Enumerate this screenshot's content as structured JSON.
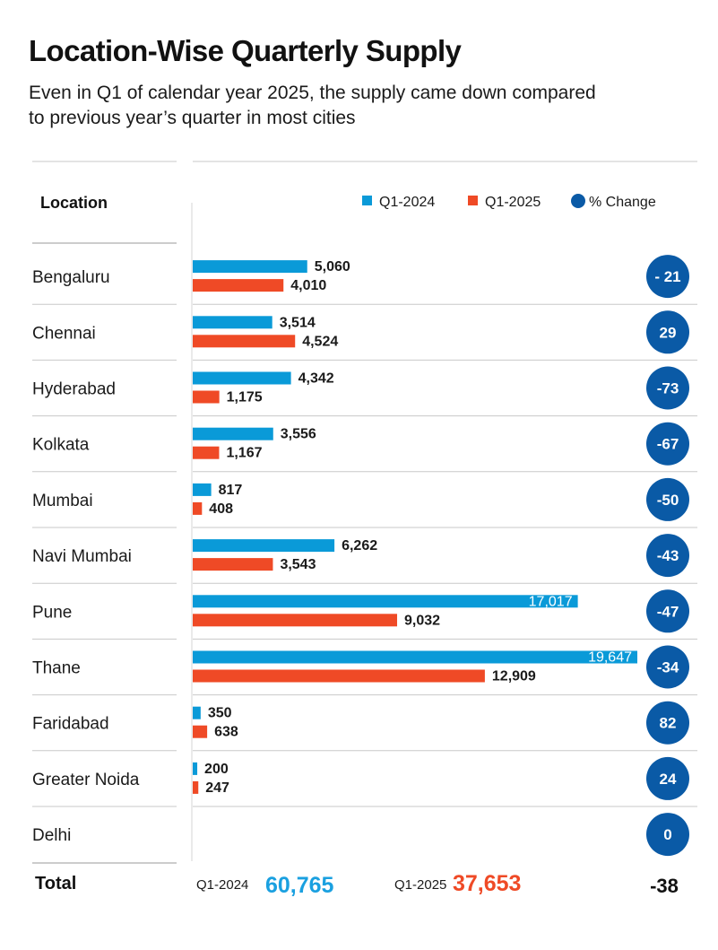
{
  "title": "Location-Wise Quarterly Supply",
  "subtitle": "Even in Q1 of calendar year 2025, the supply came down compared to previous year’s quarter in most cities",
  "colors": {
    "q1_2024": "#0a9ad8",
    "q1_2025": "#ef4a26",
    "change_circle": "#0a5aa6",
    "text": "#1a1a1a",
    "rule": "#c8c8c8",
    "total_2024": "#1aa0e0",
    "total_2025": "#ef4a26"
  },
  "chart_data": {
    "type": "bar",
    "orientation": "horizontal",
    "title": "Location-Wise Quarterly Supply",
    "subtitle": "Even in Q1 of calendar year 2025, the supply came down compared to previous year’s quarter in most cities",
    "column_header": "Location",
    "categories": [
      "Bengaluru",
      "Chennai",
      "Hyderabad",
      "Kolkata",
      "Mumbai",
      "Navi Mumbai",
      "Pune",
      "Thane",
      "Faridabad",
      "Greater Noida",
      "Delhi"
    ],
    "series": [
      {
        "name": "Q1-2024",
        "values": [
          5060,
          3514,
          4342,
          3556,
          817,
          6262,
          17017,
          19647,
          350,
          200,
          null
        ],
        "labels": [
          "5,060",
          "3,514",
          "4,342",
          "3,556",
          "817",
          "6,262",
          "17,017",
          "19,647",
          "350",
          "200",
          ""
        ]
      },
      {
        "name": "Q1-2025",
        "values": [
          4010,
          4524,
          1175,
          1167,
          408,
          3543,
          9032,
          12909,
          638,
          247,
          null
        ],
        "labels": [
          "4,010",
          "4,524",
          "1,175",
          "1,167",
          "408",
          "3,543",
          "9,032",
          "12,909",
          "638",
          "247",
          ""
        ]
      }
    ],
    "pct_change": {
      "name": "% Change",
      "labels": [
        "- 21",
        "29",
        "-73",
        "-67",
        "-50",
        "-43",
        "-47",
        "-34",
        "82",
        "24",
        "0"
      ]
    },
    "legend": [
      "Q1-2024",
      "Q1-2025",
      "% Change"
    ],
    "legend_position": "top-right",
    "xlim": [
      0,
      19647
    ],
    "total": {
      "label": "Total",
      "q1_2024_label": "Q1-2024",
      "q1_2024_value": "60,765",
      "q1_2025_label": "Q1-2025",
      "q1_2025_value": "37,653",
      "pct_change": "-38"
    }
  }
}
